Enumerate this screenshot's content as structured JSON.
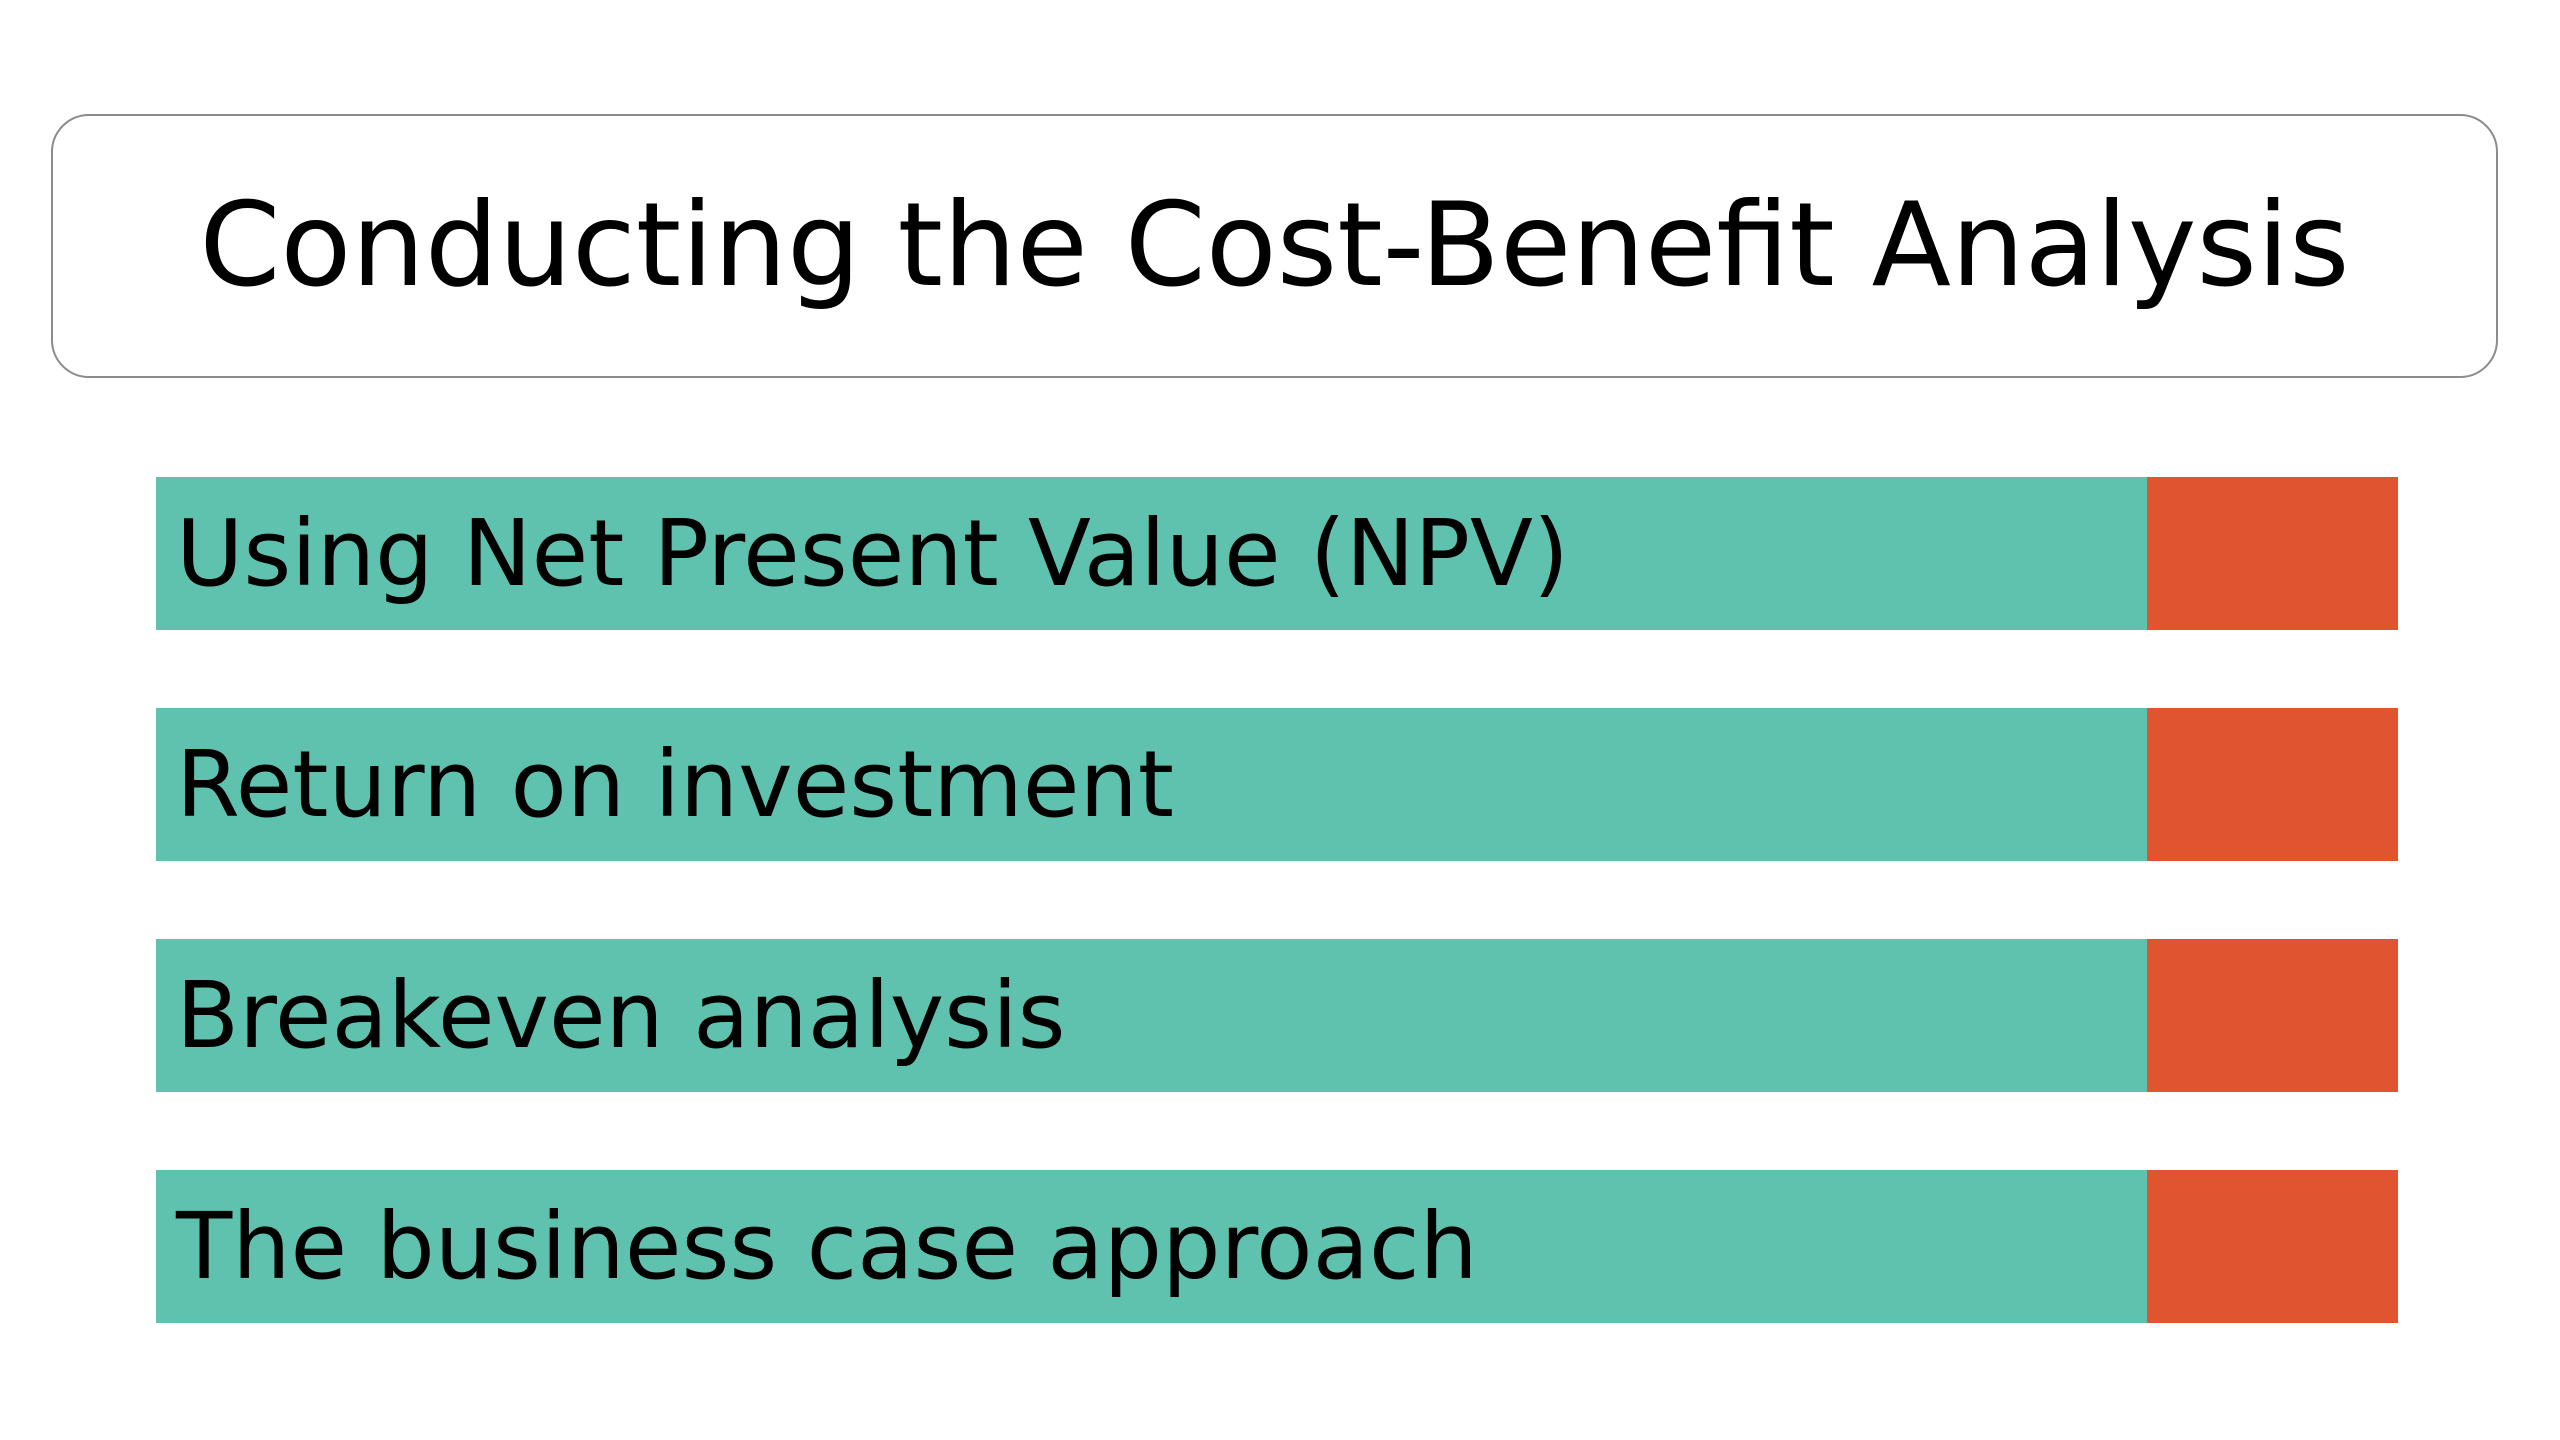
{
  "slide": {
    "title": "Conducting the Cost-Benefit Analysis"
  },
  "colors": {
    "item_fill": "#5fc2ae",
    "accent_fill": "#e05530",
    "title_border": "#8c8c8c",
    "text": "#000000",
    "background": "#ffffff"
  },
  "items": [
    {
      "label": "Using Net Present Value (NPV)"
    },
    {
      "label": "Return on investment"
    },
    {
      "label": "Breakeven analysis"
    },
    {
      "label": "The business case approach"
    }
  ]
}
